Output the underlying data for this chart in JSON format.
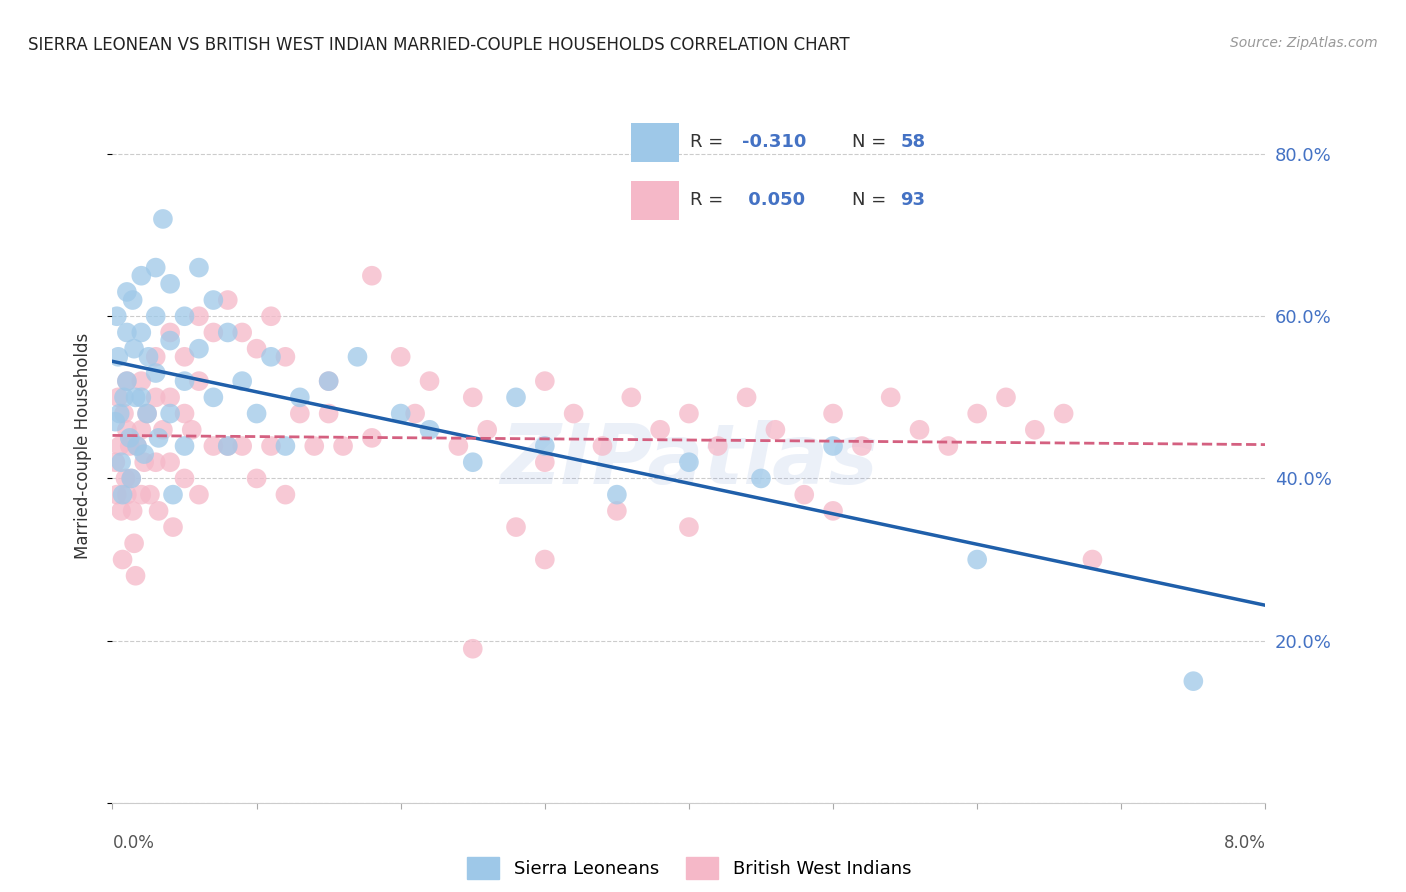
{
  "title": "SIERRA LEONEAN VS BRITISH WEST INDIAN MARRIED-COUPLE HOUSEHOLDS CORRELATION CHART",
  "source": "Source: ZipAtlas.com",
  "ylabel": "Married-couple Households",
  "color_blue": "#9ec8e8",
  "color_pink": "#f5b8c8",
  "color_trendline_blue": "#1f5faa",
  "color_trendline_pink": "#d46080",
  "color_legend_text": "#4472c4",
  "color_right_axis": "#4472c4",
  "background": "#ffffff",
  "watermark": "ZIPatlas",
  "sierra_x": [
    0.0002,
    0.0003,
    0.0004,
    0.0005,
    0.0006,
    0.0007,
    0.0008,
    0.001,
    0.001,
    0.001,
    0.0012,
    0.0013,
    0.0014,
    0.0015,
    0.0016,
    0.0017,
    0.002,
    0.002,
    0.002,
    0.0022,
    0.0024,
    0.0025,
    0.003,
    0.003,
    0.003,
    0.0032,
    0.0035,
    0.004,
    0.004,
    0.004,
    0.0042,
    0.005,
    0.005,
    0.005,
    0.006,
    0.006,
    0.007,
    0.007,
    0.008,
    0.008,
    0.009,
    0.01,
    0.011,
    0.012,
    0.013,
    0.015,
    0.017,
    0.02,
    0.022,
    0.025,
    0.028,
    0.03,
    0.035,
    0.04,
    0.045,
    0.05,
    0.06,
    0.075
  ],
  "sierra_y": [
    0.47,
    0.6,
    0.55,
    0.48,
    0.42,
    0.38,
    0.5,
    0.63,
    0.58,
    0.52,
    0.45,
    0.4,
    0.62,
    0.56,
    0.5,
    0.44,
    0.65,
    0.58,
    0.5,
    0.43,
    0.48,
    0.55,
    0.66,
    0.6,
    0.53,
    0.45,
    0.72,
    0.64,
    0.57,
    0.48,
    0.38,
    0.6,
    0.52,
    0.44,
    0.66,
    0.56,
    0.62,
    0.5,
    0.58,
    0.44,
    0.52,
    0.48,
    0.55,
    0.44,
    0.5,
    0.52,
    0.55,
    0.48,
    0.46,
    0.42,
    0.5,
    0.44,
    0.38,
    0.42,
    0.4,
    0.44,
    0.3,
    0.15
  ],
  "bwi_x": [
    0.0002,
    0.0003,
    0.0004,
    0.0005,
    0.0006,
    0.0007,
    0.0008,
    0.0009,
    0.001,
    0.001,
    0.001,
    0.0012,
    0.0013,
    0.0014,
    0.0015,
    0.0016,
    0.0017,
    0.002,
    0.002,
    0.002,
    0.0022,
    0.0024,
    0.0026,
    0.003,
    0.003,
    0.003,
    0.0032,
    0.0035,
    0.004,
    0.004,
    0.004,
    0.0042,
    0.005,
    0.005,
    0.005,
    0.0055,
    0.006,
    0.006,
    0.006,
    0.007,
    0.007,
    0.008,
    0.008,
    0.009,
    0.009,
    0.01,
    0.01,
    0.011,
    0.011,
    0.012,
    0.012,
    0.013,
    0.014,
    0.015,
    0.015,
    0.016,
    0.018,
    0.018,
    0.02,
    0.021,
    0.022,
    0.024,
    0.025,
    0.026,
    0.028,
    0.03,
    0.03,
    0.032,
    0.034,
    0.035,
    0.036,
    0.038,
    0.04,
    0.042,
    0.044,
    0.046,
    0.048,
    0.05,
    0.052,
    0.054,
    0.056,
    0.058,
    0.06,
    0.062,
    0.064,
    0.066,
    0.068,
    0.05,
    0.04,
    0.03,
    0.025
  ],
  "bwi_y": [
    0.42,
    0.38,
    0.5,
    0.44,
    0.36,
    0.3,
    0.48,
    0.4,
    0.52,
    0.46,
    0.38,
    0.44,
    0.4,
    0.36,
    0.32,
    0.28,
    0.44,
    0.52,
    0.46,
    0.38,
    0.42,
    0.48,
    0.38,
    0.55,
    0.5,
    0.42,
    0.36,
    0.46,
    0.58,
    0.5,
    0.42,
    0.34,
    0.55,
    0.48,
    0.4,
    0.46,
    0.6,
    0.52,
    0.38,
    0.58,
    0.44,
    0.62,
    0.44,
    0.58,
    0.44,
    0.56,
    0.4,
    0.6,
    0.44,
    0.55,
    0.38,
    0.48,
    0.44,
    0.52,
    0.48,
    0.44,
    0.65,
    0.45,
    0.55,
    0.48,
    0.52,
    0.44,
    0.5,
    0.46,
    0.34,
    0.52,
    0.42,
    0.48,
    0.44,
    0.36,
    0.5,
    0.46,
    0.48,
    0.44,
    0.5,
    0.46,
    0.38,
    0.48,
    0.44,
    0.5,
    0.46,
    0.44,
    0.48,
    0.5,
    0.46,
    0.48,
    0.3,
    0.36,
    0.34,
    0.3,
    0.19
  ],
  "xlim": [
    0.0,
    0.08
  ],
  "ylim": [
    0.0,
    0.88
  ],
  "xtick_vals": [
    0.0,
    0.01,
    0.02,
    0.03,
    0.04,
    0.05,
    0.06,
    0.07,
    0.08
  ],
  "ytick_vals": [
    0.0,
    0.2,
    0.4,
    0.6,
    0.8
  ],
  "ytick_labels": [
    "",
    "20.0%",
    "40.0%",
    "60.0%",
    "80.0%"
  ]
}
